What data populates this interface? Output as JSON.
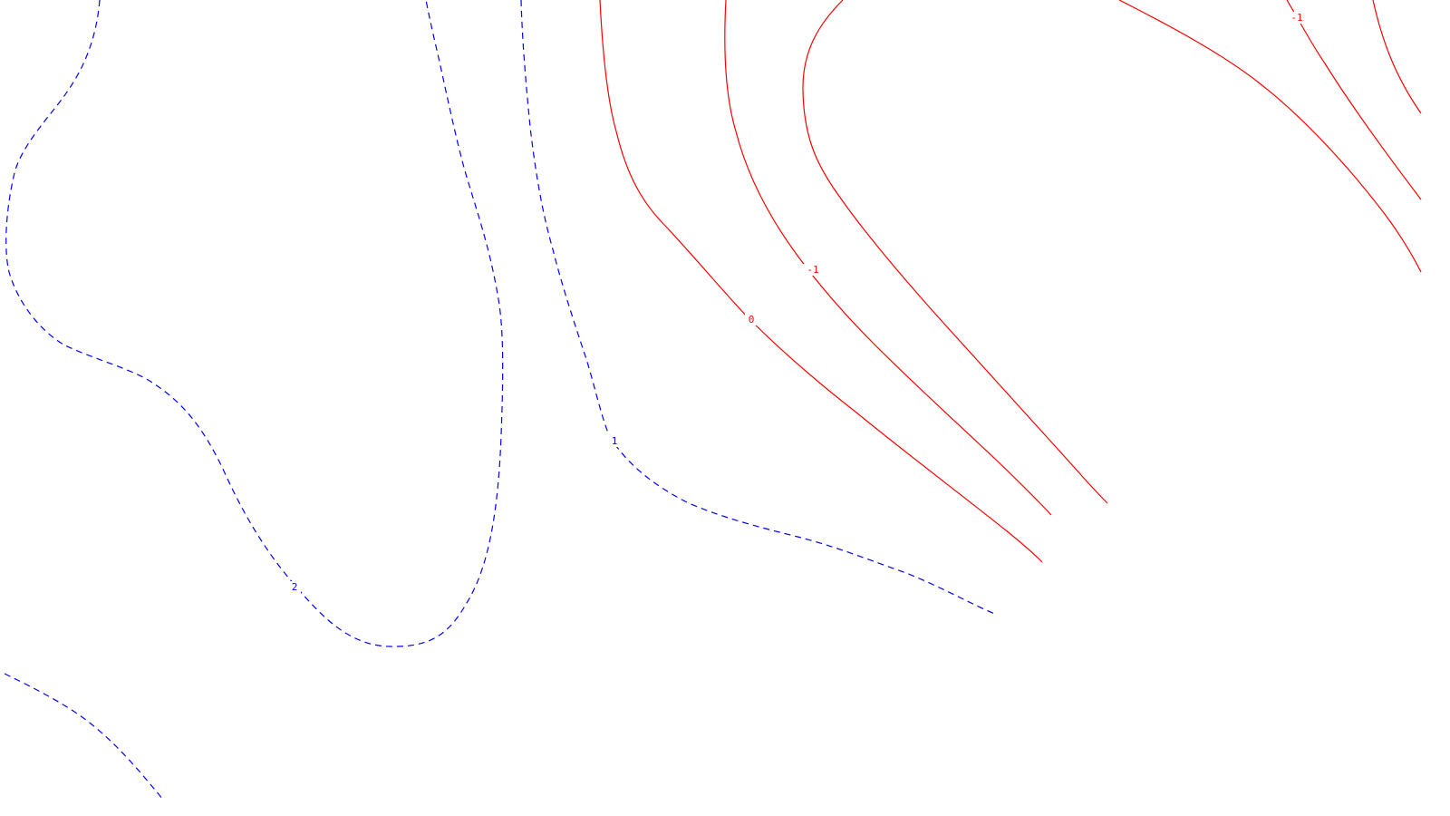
{
  "map": {
    "type": "contour-plot",
    "colors": {
      "background": "#ffffff",
      "positive": "#0000ff",
      "negative": "#ff0000"
    },
    "contours": [
      {
        "id": "contour-left-1",
        "level": "",
        "sign": "positive",
        "style": "dashed"
      },
      {
        "id": "contour-2",
        "level": "2",
        "sign": "positive",
        "style": "dashed"
      },
      {
        "id": "contour-1",
        "level": "1",
        "sign": "positive",
        "style": "dashed"
      },
      {
        "id": "contour-0",
        "level": "0",
        "sign": "negative",
        "style": "solid"
      },
      {
        "id": "contour-neg1-a",
        "level": "-1",
        "sign": "negative",
        "style": "solid"
      },
      {
        "id": "contour-neg1-b",
        "level": "",
        "sign": "negative",
        "style": "solid"
      },
      {
        "id": "contour-neg1-c",
        "level": "-1",
        "sign": "negative",
        "style": "solid"
      },
      {
        "id": "contour-right-edge",
        "level": "",
        "sign": "negative",
        "style": "solid"
      },
      {
        "id": "contour-bottom-left",
        "level": "",
        "sign": "positive",
        "style": "dashed"
      }
    ],
    "labels": {
      "label_2": "2",
      "label_1": "1",
      "label_0": "0",
      "label_neg1_mid": "-1",
      "label_neg1_top": "-1"
    }
  }
}
